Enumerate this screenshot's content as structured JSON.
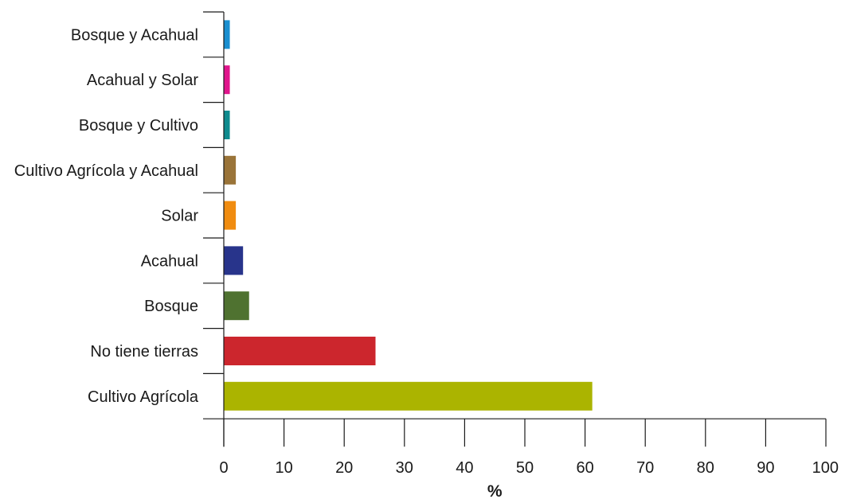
{
  "chart_data": {
    "type": "bar",
    "orientation": "horizontal",
    "categories": [
      "Bosque y Acahual",
      "Acahual y Solar",
      "Bosque y Cultivo",
      "Cultivo Agrícola y Acahual",
      "Solar",
      "Acahual",
      "Bosque",
      "No tiene tierras",
      "Cultivo Agrícola"
    ],
    "values": [
      1,
      1,
      1,
      2,
      2,
      3.2,
      4.2,
      25.2,
      61.2
    ],
    "colors": [
      "#1a8fd0",
      "#e0158c",
      "#0e8b8e",
      "#9a7439",
      "#f08c10",
      "#28348b",
      "#4f7230",
      "#cc262d",
      "#abb400"
    ],
    "xlabel": "%",
    "ylabel": "",
    "xlim": [
      0,
      100
    ],
    "xticks": [
      "0",
      "10",
      "20",
      "30",
      "40",
      "50",
      "60",
      "70",
      "80",
      "90",
      "100"
    ],
    "grid": false,
    "legend": "none"
  }
}
